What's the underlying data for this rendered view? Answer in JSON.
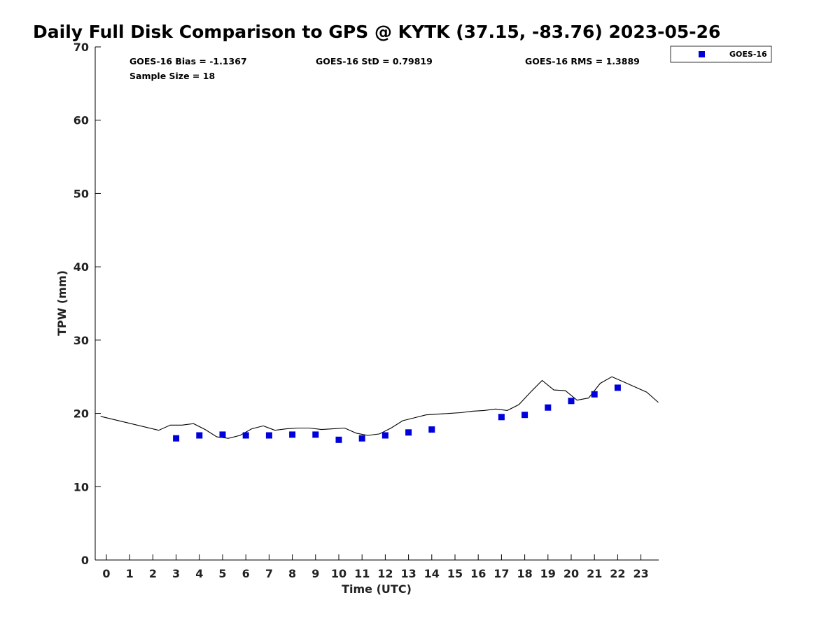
{
  "chart_data": {
    "type": "scatter",
    "title": "Daily Full Disk Comparison to GPS @ KYTK (37.15, -83.76) 2023-05-26",
    "xlabel": "Time (UTC)",
    "ylabel": "TPW (mm)",
    "xlim": [
      -0.5,
      23.8
    ],
    "ylim": [
      0,
      70
    ],
    "x_ticks": [
      "0",
      "1",
      "2",
      "3",
      "4",
      "5",
      "6",
      "7",
      "8",
      "9",
      "10",
      "11",
      "12",
      "13",
      "14",
      "15",
      "16",
      "17",
      "18",
      "19",
      "20",
      "21",
      "22",
      "23"
    ],
    "y_ticks": [
      "0",
      "10",
      "20",
      "30",
      "40",
      "50",
      "60",
      "70"
    ],
    "stats": {
      "bias": "GOES-16 Bias = -1.1367",
      "std": "GOES-16 StD = 0.79819",
      "rms": "GOES-16 RMS = 1.3889",
      "sample": "Sample Size = 18"
    },
    "legend": {
      "label": "GOES-16",
      "position": "top-right (outside plot)"
    },
    "colors": {
      "marker": "#0000dd",
      "line": "#000000",
      "axis": "#000000"
    },
    "series": [
      {
        "name": "GOES-16",
        "style": "marker",
        "x": [
          3,
          4,
          5,
          6,
          7,
          8,
          9,
          10,
          11,
          12,
          13,
          14,
          17,
          18,
          19,
          20,
          21,
          22
        ],
        "y": [
          16.6,
          17.0,
          17.1,
          17.0,
          17.0,
          17.1,
          17.1,
          16.4,
          16.6,
          17.0,
          17.4,
          17.8,
          19.5,
          19.8,
          20.8,
          21.7,
          22.6,
          23.5
        ]
      },
      {
        "style": "line",
        "x": [
          -0.25,
          2.25,
          2.75,
          3.25,
          3.75,
          4.25,
          4.75,
          5.25,
          5.75,
          6.25,
          6.75,
          7.25,
          7.75,
          8.25,
          8.75,
          9.25,
          9.75,
          10.25,
          10.75,
          11.25,
          11.75,
          12.25,
          12.75,
          13.25,
          13.75,
          14.25,
          14.75,
          15.25,
          15.75,
          16.25,
          16.75,
          17.25,
          17.75,
          18.25,
          18.75,
          19.25,
          19.75,
          20.25,
          20.75,
          21.25,
          21.75,
          22.25,
          22.75,
          23.25,
          23.75
        ],
        "y": [
          19.6,
          17.7,
          18.4,
          18.4,
          18.6,
          17.8,
          16.8,
          16.6,
          17.0,
          17.9,
          18.3,
          17.7,
          17.9,
          18.0,
          18.0,
          17.8,
          17.9,
          18.0,
          17.3,
          17.0,
          17.2,
          18.0,
          19.0,
          19.4,
          19.8,
          19.9,
          20.0,
          20.1,
          20.3,
          20.4,
          20.6,
          20.4,
          21.2,
          22.9,
          24.5,
          23.2,
          23.1,
          21.8,
          22.1,
          24.1,
          25.0,
          24.3,
          23.6,
          22.9,
          21.5
        ]
      }
    ]
  }
}
